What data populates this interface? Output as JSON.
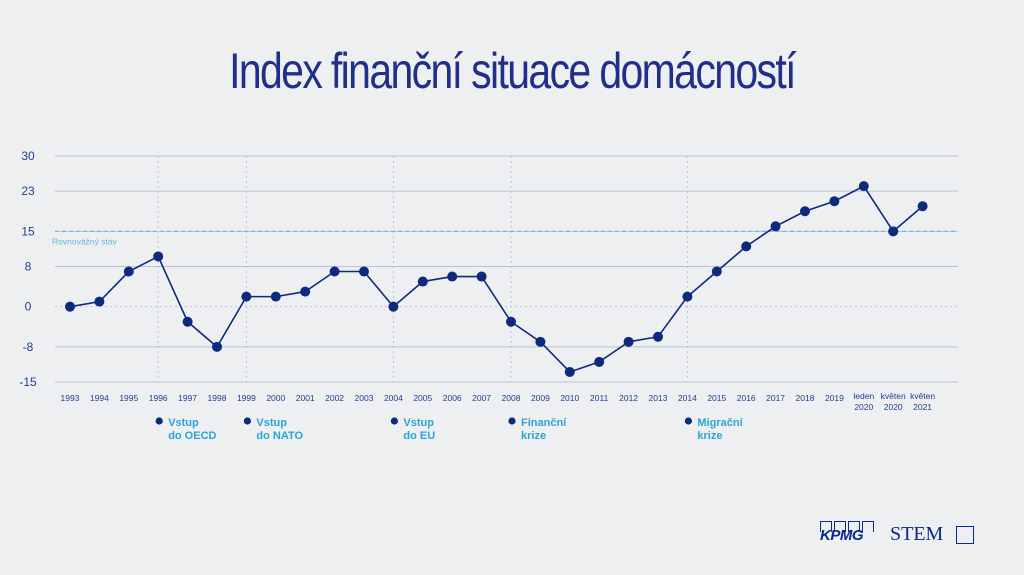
{
  "title": "Index finanční situace domácností",
  "chart_data": {
    "type": "line",
    "title": "Index finanční situace domácností",
    "categories": [
      "1993",
      "1994",
      "1995",
      "1996",
      "1997",
      "1998",
      "1999",
      "2000",
      "2001",
      "2002",
      "2003",
      "2004",
      "2005",
      "2006",
      "2007",
      "2008",
      "2009",
      "2010",
      "2011",
      "2012",
      "2013",
      "2014",
      "2015",
      "2016",
      "2017",
      "2018",
      "2019",
      "leden 2020",
      "květen 2020",
      "květen 2021"
    ],
    "series": [
      {
        "values": [
          0,
          1,
          7,
          10,
          -3,
          -8,
          2,
          2,
          3,
          7,
          7,
          0,
          5,
          6,
          6,
          -3,
          -7,
          -13,
          -11,
          -7,
          -6,
          2,
          7,
          12,
          16,
          19,
          21,
          24,
          15,
          20
        ]
      }
    ],
    "yticks": [
      30,
      23,
      15,
      8,
      0,
      -8,
      -15
    ],
    "ylim": [
      -15,
      30
    ],
    "reference_line": {
      "label": "Rovnovážný stav",
      "value": 15
    },
    "events": [
      {
        "category": "1996",
        "label": [
          "Vstup",
          "do OECD"
        ]
      },
      {
        "category": "1999",
        "label": [
          "Vstup",
          "do NATO"
        ]
      },
      {
        "category": "2004",
        "label": [
          "Vstup",
          "do EU"
        ]
      },
      {
        "category": "2008",
        "label": [
          "Finanční",
          "krize"
        ]
      },
      {
        "category": "2014",
        "label": [
          "Migrační",
          "krize"
        ]
      }
    ],
    "grid": true,
    "colors": {
      "line": "#0d2a7d",
      "marker": "#0d2a7d",
      "axis_text": "#1f3f8f",
      "event_text": "#2aa4d8",
      "reference": "#5fb7e0",
      "grid": "#b9c3d8"
    }
  },
  "logos": {
    "kpmg": "KPMG",
    "stem": "STEM"
  }
}
